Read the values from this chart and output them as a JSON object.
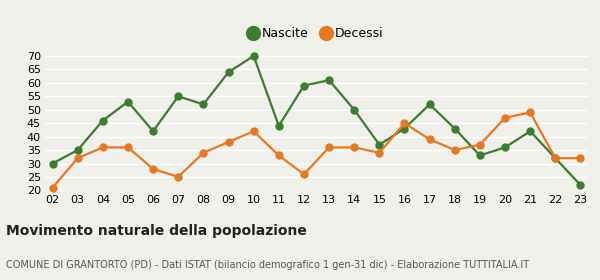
{
  "years": [
    "02",
    "03",
    "04",
    "05",
    "06",
    "07",
    "08",
    "09",
    "10",
    "11",
    "12",
    "13",
    "14",
    "15",
    "16",
    "17",
    "18",
    "19",
    "20",
    "21",
    "22",
    "23"
  ],
  "nascite": [
    30,
    35,
    46,
    53,
    42,
    55,
    52,
    64,
    70,
    44,
    59,
    61,
    50,
    37,
    43,
    52,
    43,
    33,
    36,
    42,
    32,
    22
  ],
  "decessi": [
    21,
    32,
    36,
    36,
    28,
    25,
    34,
    38,
    42,
    33,
    26,
    36,
    36,
    34,
    45,
    39,
    35,
    37,
    47,
    49,
    32,
    32
  ],
  "nascite_color": "#3a7d2c",
  "decessi_color": "#e87722",
  "bg_color": "#f0f0eb",
  "ylim": [
    20,
    70
  ],
  "yticks": [
    20,
    25,
    30,
    35,
    40,
    45,
    50,
    55,
    60,
    65,
    70
  ],
  "title": "Movimento naturale della popolazione",
  "subtitle": "COMUNE DI GRANTORTO (PD) - Dati ISTAT (bilancio demografico 1 gen-31 dic) - Elaborazione TUTTITALIA.IT",
  "legend_nascite": "Nascite",
  "legend_decessi": "Decessi",
  "title_fontsize": 10,
  "subtitle_fontsize": 7,
  "tick_fontsize": 8,
  "marker_size": 5,
  "line_width": 1.6,
  "grid_color": "#ffffff",
  "grid_linewidth": 1.0
}
